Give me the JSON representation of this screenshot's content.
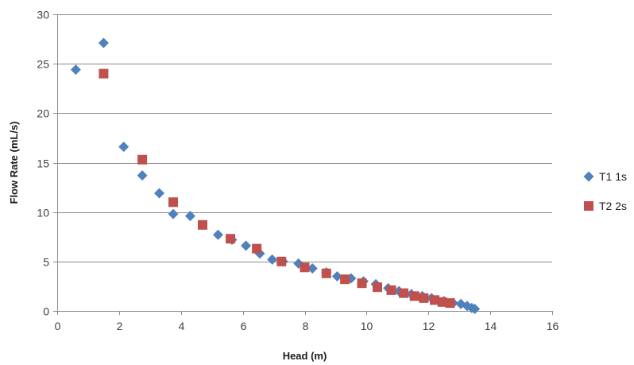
{
  "chart_data": {
    "type": "scatter",
    "xlabel": "Head (m)",
    "ylabel": "Flow Rate (mL/s)",
    "xlim": [
      0,
      16
    ],
    "ylim": [
      0,
      30
    ],
    "x_ticks": [
      0,
      2,
      4,
      6,
      8,
      10,
      12,
      14,
      16
    ],
    "y_ticks": [
      0,
      5,
      10,
      15,
      20,
      25,
      30
    ],
    "grid": "horizontal",
    "legend_position": "right",
    "series": [
      {
        "name": "T1 1s",
        "marker": "diamond",
        "color": "#4f81bd",
        "points": [
          [
            0.6,
            24.4
          ],
          [
            1.5,
            27.1
          ],
          [
            2.15,
            16.6
          ],
          [
            2.75,
            13.7
          ],
          [
            3.3,
            11.9
          ],
          [
            3.75,
            9.8
          ],
          [
            4.3,
            9.6
          ],
          [
            5.2,
            7.7
          ],
          [
            5.65,
            7.2
          ],
          [
            6.1,
            6.6
          ],
          [
            6.55,
            5.8
          ],
          [
            6.95,
            5.2
          ],
          [
            7.3,
            5.0
          ],
          [
            7.8,
            4.8
          ],
          [
            8.25,
            4.3
          ],
          [
            8.7,
            3.9
          ],
          [
            9.05,
            3.5
          ],
          [
            9.5,
            3.3
          ],
          [
            9.9,
            3.0
          ],
          [
            10.3,
            2.7
          ],
          [
            10.7,
            2.3
          ],
          [
            11.05,
            2.0
          ],
          [
            11.45,
            1.7
          ],
          [
            11.8,
            1.5
          ],
          [
            12.1,
            1.3
          ],
          [
            12.5,
            1.0
          ],
          [
            12.8,
            0.8
          ],
          [
            13.05,
            0.7
          ],
          [
            13.25,
            0.5
          ],
          [
            13.4,
            0.3
          ],
          [
            13.5,
            0.2
          ]
        ]
      },
      {
        "name": "T2 2s",
        "marker": "square",
        "color": "#c0504d",
        "points": [
          [
            1.5,
            24.0
          ],
          [
            2.75,
            15.3
          ],
          [
            3.75,
            11.0
          ],
          [
            4.7,
            8.7
          ],
          [
            5.6,
            7.3
          ],
          [
            6.45,
            6.3
          ],
          [
            7.25,
            5.0
          ],
          [
            8.0,
            4.4
          ],
          [
            8.7,
            3.8
          ],
          [
            9.3,
            3.2
          ],
          [
            9.85,
            2.8
          ],
          [
            10.35,
            2.4
          ],
          [
            10.8,
            2.1
          ],
          [
            11.2,
            1.8
          ],
          [
            11.55,
            1.5
          ],
          [
            11.85,
            1.3
          ],
          [
            12.2,
            1.1
          ],
          [
            12.45,
            0.9
          ],
          [
            12.7,
            0.8
          ]
        ]
      }
    ]
  }
}
